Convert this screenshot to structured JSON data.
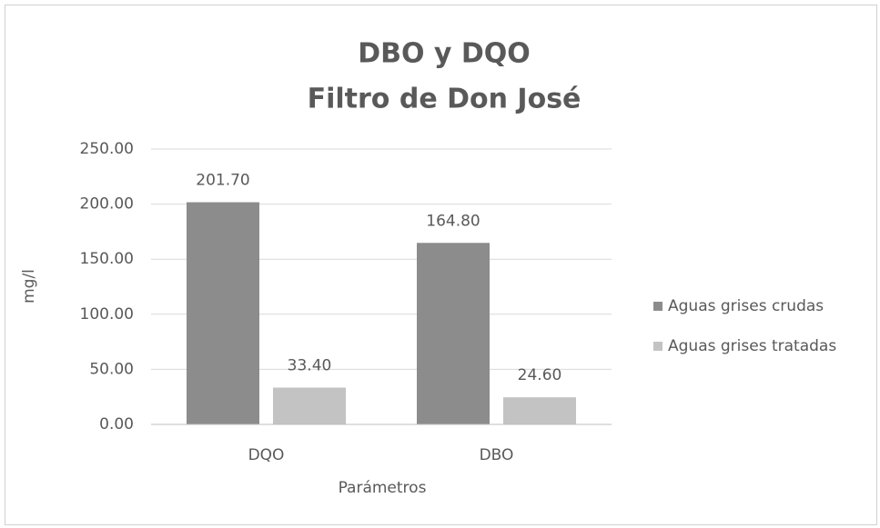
{
  "chart_data": {
    "type": "bar",
    "title": "DBO y DQO",
    "subtitle": "Filtro de Don José",
    "x_label": "Parámetros",
    "y_label": "mg/l",
    "categories": [
      "DQO",
      "DBO"
    ],
    "series": [
      {
        "name": "Aguas grises crudas",
        "color": "#8c8c8c",
        "values": [
          201.7,
          164.8
        ],
        "value_labels": [
          "201.70",
          "164.80"
        ]
      },
      {
        "name": "Aguas grises tratadas",
        "color": "#c3c3c3",
        "values": [
          33.4,
          24.6
        ],
        "value_labels": [
          "33.40",
          "24.60"
        ]
      }
    ],
    "ylim": [
      0,
      250
    ],
    "yticks": [
      {
        "value": 0,
        "label": "0.00"
      },
      {
        "value": 50,
        "label": "50.00"
      },
      {
        "value": 100,
        "label": "100.00"
      },
      {
        "value": 150,
        "label": "150.00"
      },
      {
        "value": 200,
        "label": "200.00"
      },
      {
        "value": 250,
        "label": "250.00"
      }
    ],
    "grid": true,
    "legend": "right"
  }
}
